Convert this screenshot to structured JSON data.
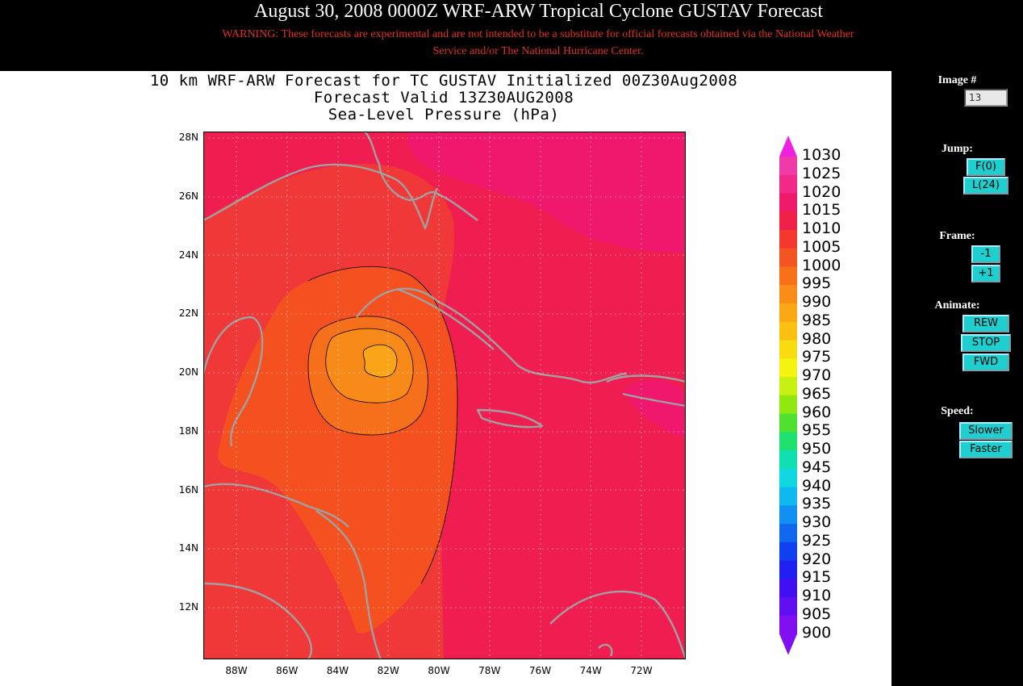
{
  "header": {
    "title": "August 30, 2008 0000Z WRF-ARW Tropical Cyclone GUSTAV Forecast",
    "warning": "WARNING: These forecasts are experimental and are not intended to be a substitute for official forecasts obtained via the National Weather Service and/or The National Hurricane Center."
  },
  "map": {
    "title_line1": "10 km WRF-ARW Forecast for TC GUSTAV Initialized 00Z30Aug2008",
    "title_line2": "Forecast Valid 13Z30AUG2008",
    "title_line3": "Sea-Level Pressure (hPa)",
    "lat_ticks": [
      "28N",
      "26N",
      "24N",
      "22N",
      "20N",
      "18N",
      "16N",
      "14N",
      "12N"
    ],
    "lon_ticks": [
      "88W",
      "86W",
      "84W",
      "82W",
      "80W",
      "78W",
      "76W",
      "74W",
      "72W"
    ],
    "legend_levels": [
      "1030",
      "1025",
      "1020",
      "1015",
      "1010",
      "1005",
      "1000",
      "995",
      "990",
      "985",
      "980",
      "975",
      "970",
      "965",
      "960",
      "955",
      "950",
      "945",
      "940",
      "935",
      "930",
      "925",
      "920",
      "915",
      "910",
      "905",
      "900"
    ],
    "legend_colors": [
      "#f020e0",
      "#f03aa8",
      "#f02a86",
      "#f01a6a",
      "#f02048",
      "#f43830",
      "#f45420",
      "#f8701a",
      "#fa8c18",
      "#fca814",
      "#fcc010",
      "#f8dc10",
      "#f4f410",
      "#c8f010",
      "#90e810",
      "#50e030",
      "#20e070",
      "#10e0b0",
      "#10d8e0",
      "#10b8f0",
      "#1090f0",
      "#1068f0",
      "#1040f0",
      "#2020f0",
      "#4010f0",
      "#6010f0",
      "#8010f0"
    ],
    "colors": {
      "field_1015": "#f0186c",
      "field_1010": "#f01e50",
      "field_1005": "#f03838",
      "field_1000": "#f45020",
      "field_995": "#f6701c",
      "field_990": "#f88a1a",
      "field_985": "#faa418",
      "coast": "#a0a0a0"
    }
  },
  "sidebar": {
    "image_label": "Image #",
    "image_value": "13",
    "jump_label": "Jump:",
    "jump_first": "F(0)",
    "jump_last": "L(24)",
    "frame_label": "Frame:",
    "frame_prev": "-1",
    "frame_next": "+1",
    "animate_label": "Animate:",
    "animate_rew": "REW",
    "animate_stop": "STOP",
    "animate_fwd": "FWD",
    "speed_label": "Speed:",
    "speed_slower": "Slower",
    "speed_faster": "Faster"
  }
}
